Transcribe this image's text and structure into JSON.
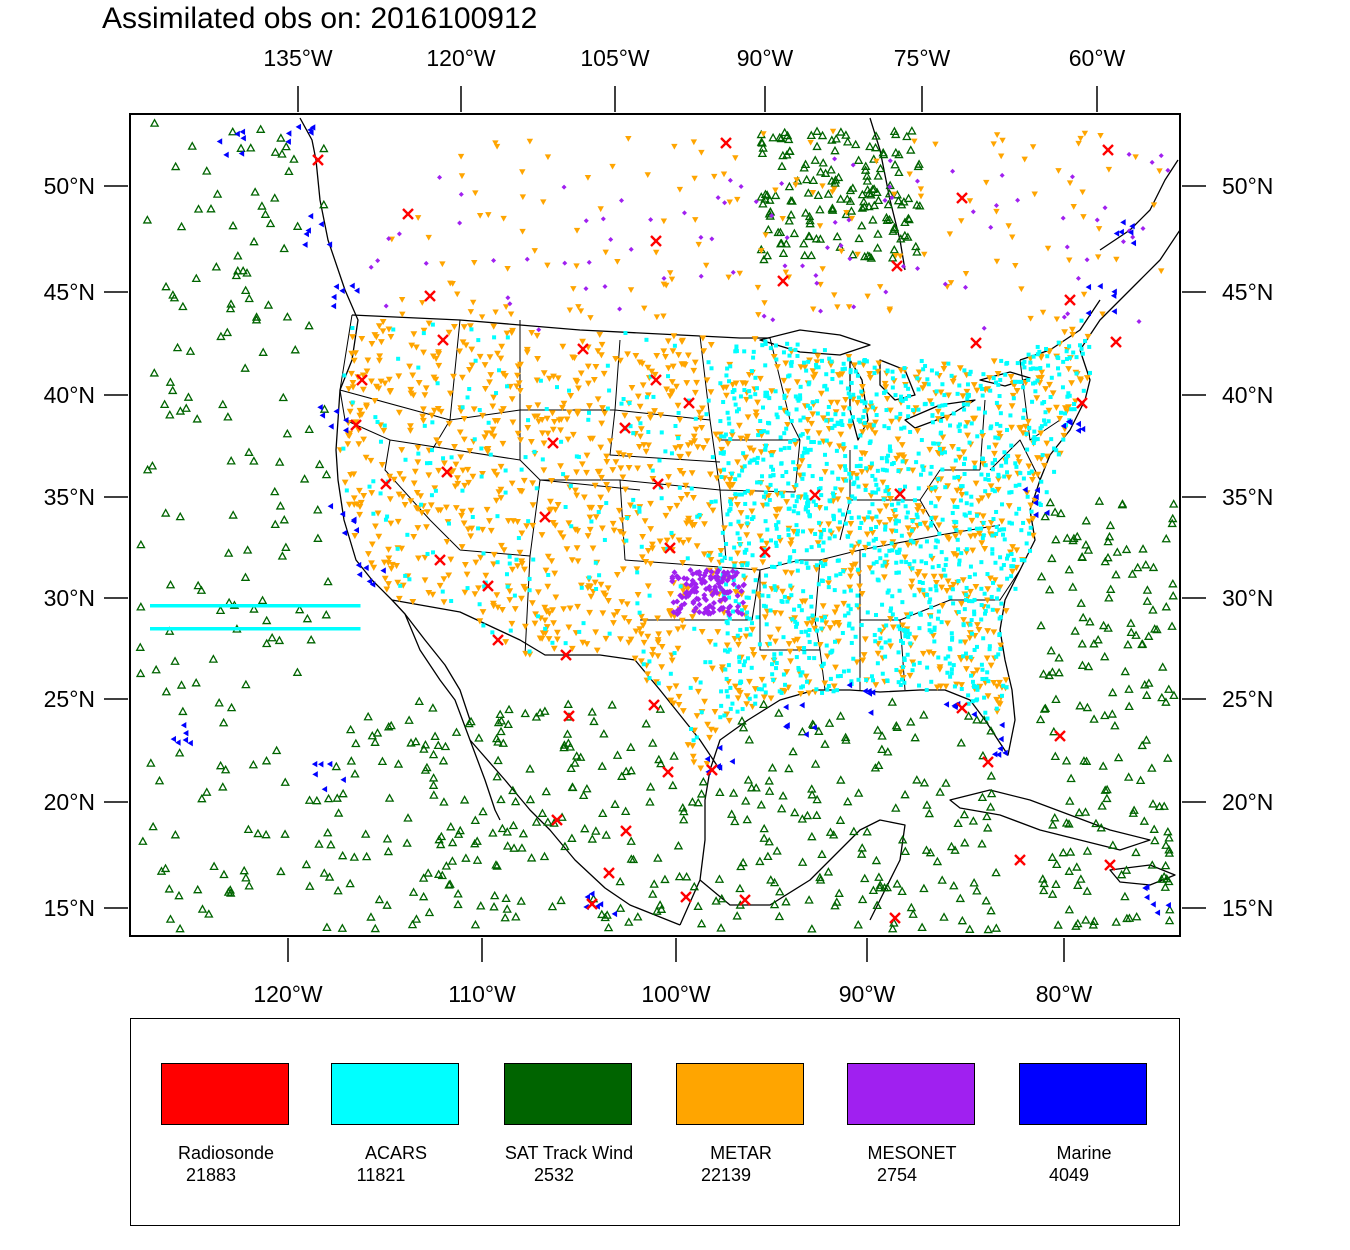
{
  "title": "Assimilated obs on: 2016100912",
  "map": {
    "region": "CONUS and surroundings",
    "top_lon_labels": [
      "135°W",
      "120°W",
      "105°W",
      "90°W",
      "75°W",
      "60°W"
    ],
    "bottom_lon_labels": [
      "120°W",
      "110°W",
      "100°W",
      "90°W",
      "80°W"
    ],
    "lat_labels": [
      "50°N",
      "45°N",
      "40°N",
      "35°N",
      "30°N",
      "25°N",
      "20°N",
      "15°N"
    ],
    "coastline_color": "#000000",
    "border_color": "#000000"
  },
  "legend": {
    "items": [
      {
        "label": "Radiosonde",
        "count": "21883",
        "color": "#ff0000",
        "marker": "x-icon"
      },
      {
        "label": "ACARS",
        "count": "11821",
        "color": "#00ffff",
        "marker": "square-dot-icon"
      },
      {
        "label": "SAT Track Wind",
        "count": "2532",
        "color": "#006400",
        "marker": "triangle-up-icon"
      },
      {
        "label": "METAR",
        "count": "22139",
        "color": "#ffa500",
        "marker": "triangle-down-icon"
      },
      {
        "label": "MESONET",
        "count": "2754",
        "color": "#a020f0",
        "marker": "diamond-icon"
      },
      {
        "label": "Marine",
        "count": "4049",
        "color": "#0000ff",
        "marker": "triangle-left-icon"
      }
    ]
  }
}
